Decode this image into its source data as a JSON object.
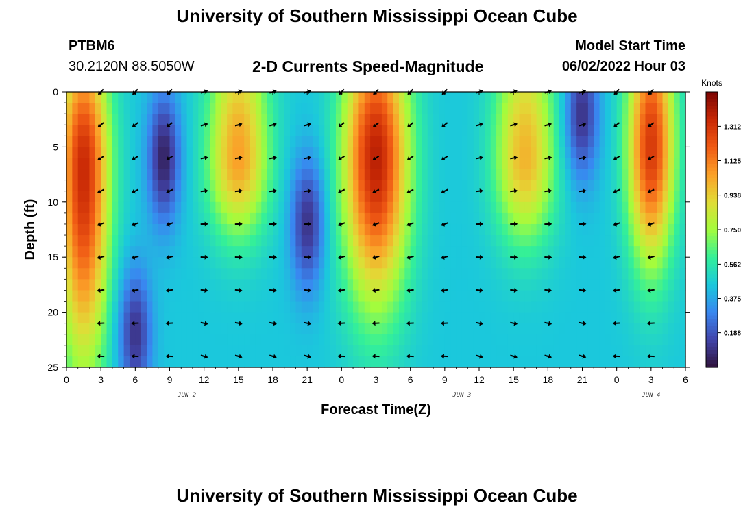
{
  "header": {
    "title": "University of Southern Mississippi Ocean Cube",
    "station": "PTBM6",
    "coords": "30.2120N  88.5050W",
    "subtitle": "2-D Currents Speed-Magnitude",
    "model_start_label": "Model Start Time",
    "model_start_value": "06/02/2022 Hour 03"
  },
  "footer": {
    "title": "University of Southern Mississippi Ocean Cube"
  },
  "chart_data": {
    "type": "heatmap",
    "xlabel": "Forecast Time(Z)",
    "ylabel": "Depth (ft)",
    "x_ticks": [
      "0",
      "3",
      "6",
      "9",
      "12",
      "15",
      "18",
      "21",
      "0",
      "3",
      "6",
      "9",
      "12",
      "15",
      "18",
      "21",
      "0",
      "3",
      "6"
    ],
    "x_hours": [
      0,
      54
    ],
    "y_ticks": [
      "0",
      "5",
      "10",
      "15",
      "20",
      "25"
    ],
    "ylim": [
      0,
      25
    ],
    "day_labels": [
      {
        "text": "JUN 2",
        "hour": 10.5
      },
      {
        "text": "JUN 3",
        "hour": 34.5
      },
      {
        "text": "JUN 4",
        "hour": 51
      }
    ],
    "colorbar": {
      "unit": "Knots",
      "range": [
        0,
        1.5
      ],
      "ticks": [
        "0.188",
        "0.375",
        "0.562",
        "0.750",
        "0.938",
        "1.125",
        "1.312"
      ],
      "tick_values": [
        0.188,
        0.375,
        0.562,
        0.75,
        0.938,
        1.125,
        1.312
      ]
    },
    "grid": false,
    "speed_field_model": {
      "description_of_peaks": "surface-to-depth speed maxima",
      "peaks": [
        {
          "hour": 1.5,
          "depth": 7,
          "speed": 1.35,
          "width_h": 2.2,
          "depth_extent": 30
        },
        {
          "hour": 15,
          "depth": 6,
          "speed": 1.05,
          "width_h": 2.6,
          "depth_extent": 12
        },
        {
          "hour": 27,
          "depth": 6,
          "speed": 1.38,
          "width_h": 2.8,
          "depth_extent": 22
        },
        {
          "hour": 40,
          "depth": 6,
          "speed": 1.0,
          "width_h": 2.6,
          "depth_extent": 13
        },
        {
          "hour": 51,
          "depth": 5,
          "speed": 1.3,
          "width_h": 2.0,
          "depth_extent": 18
        }
      ],
      "minima": [
        {
          "hour": 8.5,
          "depth": 6,
          "speed": 0.05
        },
        {
          "hour": 21,
          "depth": 12,
          "speed": 0.1
        },
        {
          "hour": 6,
          "depth": 22,
          "speed": 0.1
        },
        {
          "hour": 45,
          "depth": 2,
          "speed": 0.1
        }
      ],
      "background_speed": 0.45
    },
    "vector_rows_depth": [
      0,
      3,
      6,
      9,
      12,
      15,
      18,
      21,
      24
    ],
    "vector_cols_hour": [
      3,
      6,
      9,
      12,
      15,
      18,
      21,
      24,
      27,
      30,
      33,
      36,
      39,
      42,
      45,
      48,
      51
    ]
  }
}
